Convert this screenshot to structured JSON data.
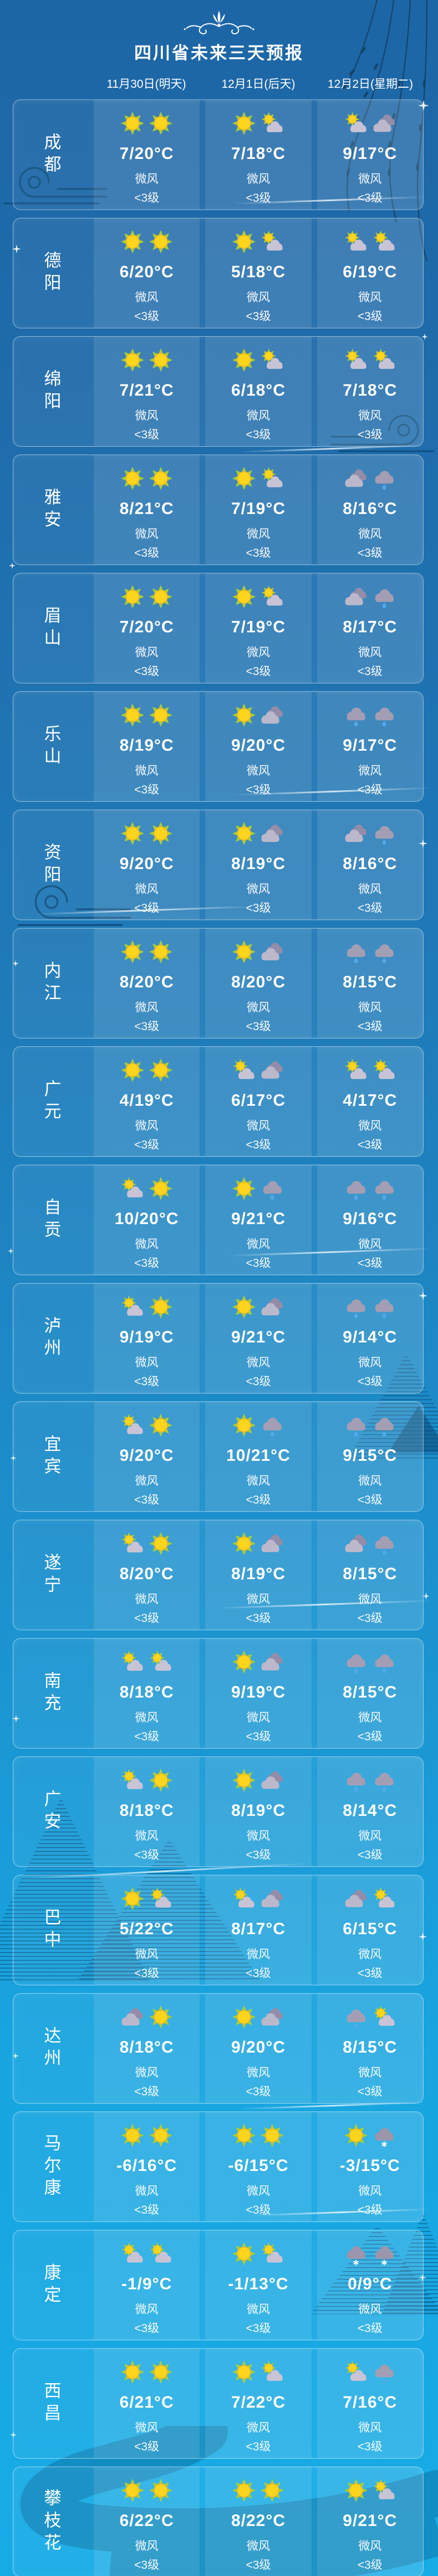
{
  "header": {
    "title": "四川省未来三天预报",
    "dates": [
      "11月30日(明天)",
      "12月1日(后天)",
      "12月2日(星期二)"
    ]
  },
  "wind": {
    "direction": "微风",
    "level": "<3级"
  },
  "icon_legend": {
    "sun": "晴 sunny",
    "sun-cloud": "多云 partly cloudy (sun behind cloud)",
    "cloud": "阴 cloudy (double grey cloud)",
    "rain": "小雨 light rain (cloud with raindrop)",
    "snow": "小雪 light snow (cloud with snowflake)"
  },
  "colors": {
    "background_top": "#1d66a6",
    "background_bottom": "#17abe6",
    "text": "#ffffff",
    "sun_core": "#ffd41d",
    "sun_rays": "#a9ce38",
    "cloud_light": "#c8c4d6",
    "cloud_grey": "#9b96ab",
    "rain_drop": "#52aaeb"
  },
  "rows": [
    {
      "city": "成都",
      "days": [
        {
          "icons": [
            "sun",
            "sun"
          ],
          "temp": "7/20°C"
        },
        {
          "icons": [
            "sun",
            "sun-cloud"
          ],
          "temp": "7/18°C"
        },
        {
          "icons": [
            "sun-cloud",
            "cloud"
          ],
          "temp": "9/17°C"
        }
      ]
    },
    {
      "city": "德阳",
      "days": [
        {
          "icons": [
            "sun",
            "sun"
          ],
          "temp": "6/20°C"
        },
        {
          "icons": [
            "sun",
            "sun-cloud"
          ],
          "temp": "5/18°C"
        },
        {
          "icons": [
            "sun-cloud",
            "sun-cloud"
          ],
          "temp": "6/19°C"
        }
      ]
    },
    {
      "city": "绵阳",
      "days": [
        {
          "icons": [
            "sun",
            "sun"
          ],
          "temp": "7/21°C"
        },
        {
          "icons": [
            "sun",
            "sun-cloud"
          ],
          "temp": "6/18°C"
        },
        {
          "icons": [
            "sun-cloud",
            "sun-cloud"
          ],
          "temp": "7/18°C"
        }
      ]
    },
    {
      "city": "雅安",
      "days": [
        {
          "icons": [
            "sun",
            "sun"
          ],
          "temp": "8/21°C"
        },
        {
          "icons": [
            "sun",
            "sun-cloud"
          ],
          "temp": "7/19°C"
        },
        {
          "icons": [
            "cloud",
            "rain"
          ],
          "temp": "8/16°C"
        }
      ]
    },
    {
      "city": "眉山",
      "days": [
        {
          "icons": [
            "sun",
            "sun"
          ],
          "temp": "7/20°C"
        },
        {
          "icons": [
            "sun",
            "sun-cloud"
          ],
          "temp": "7/19°C"
        },
        {
          "icons": [
            "cloud",
            "rain"
          ],
          "temp": "8/17°C"
        }
      ]
    },
    {
      "city": "乐山",
      "days": [
        {
          "icons": [
            "sun",
            "sun"
          ],
          "temp": "8/19°C"
        },
        {
          "icons": [
            "sun",
            "cloud"
          ],
          "temp": "9/20°C"
        },
        {
          "icons": [
            "rain",
            "rain"
          ],
          "temp": "9/17°C"
        }
      ]
    },
    {
      "city": "资阳",
      "days": [
        {
          "icons": [
            "sun",
            "sun"
          ],
          "temp": "9/20°C"
        },
        {
          "icons": [
            "sun",
            "cloud"
          ],
          "temp": "8/19°C"
        },
        {
          "icons": [
            "cloud",
            "rain"
          ],
          "temp": "8/16°C"
        }
      ]
    },
    {
      "city": "内江",
      "days": [
        {
          "icons": [
            "sun",
            "sun"
          ],
          "temp": "8/20°C"
        },
        {
          "icons": [
            "sun",
            "cloud"
          ],
          "temp": "8/20°C"
        },
        {
          "icons": [
            "rain",
            "rain"
          ],
          "temp": "8/15°C"
        }
      ]
    },
    {
      "city": "广元",
      "days": [
        {
          "icons": [
            "sun",
            "sun"
          ],
          "temp": "4/19°C"
        },
        {
          "icons": [
            "sun-cloud",
            "cloud"
          ],
          "temp": "6/17°C"
        },
        {
          "icons": [
            "sun-cloud",
            "sun-cloud"
          ],
          "temp": "4/17°C"
        }
      ]
    },
    {
      "city": "自贡",
      "days": [
        {
          "icons": [
            "sun-cloud",
            "sun"
          ],
          "temp": "10/20°C"
        },
        {
          "icons": [
            "sun",
            "rain"
          ],
          "temp": "9/21°C"
        },
        {
          "icons": [
            "rain",
            "rain"
          ],
          "temp": "9/16°C"
        }
      ]
    },
    {
      "city": "泸州",
      "days": [
        {
          "icons": [
            "sun-cloud",
            "sun"
          ],
          "temp": "9/19°C"
        },
        {
          "icons": [
            "sun",
            "cloud"
          ],
          "temp": "9/21°C"
        },
        {
          "icons": [
            "rain",
            "rain"
          ],
          "temp": "9/14°C"
        }
      ]
    },
    {
      "city": "宜宾",
      "days": [
        {
          "icons": [
            "sun-cloud",
            "sun"
          ],
          "temp": "9/20°C"
        },
        {
          "icons": [
            "sun",
            "rain"
          ],
          "temp": "10/21°C"
        },
        {
          "icons": [
            "rain",
            "rain"
          ],
          "temp": "9/15°C"
        }
      ]
    },
    {
      "city": "遂宁",
      "days": [
        {
          "icons": [
            "sun-cloud",
            "sun"
          ],
          "temp": "8/20°C"
        },
        {
          "icons": [
            "sun",
            "cloud"
          ],
          "temp": "8/19°C"
        },
        {
          "icons": [
            "cloud",
            "rain"
          ],
          "temp": "8/15°C"
        }
      ]
    },
    {
      "city": "南充",
      "days": [
        {
          "icons": [
            "sun-cloud",
            "sun-cloud"
          ],
          "temp": "8/18°C"
        },
        {
          "icons": [
            "sun",
            "cloud"
          ],
          "temp": "9/19°C"
        },
        {
          "icons": [
            "rain",
            "rain"
          ],
          "temp": "8/15°C"
        }
      ]
    },
    {
      "city": "广安",
      "days": [
        {
          "icons": [
            "sun-cloud",
            "sun"
          ],
          "temp": "8/18°C"
        },
        {
          "icons": [
            "sun",
            "cloud"
          ],
          "temp": "8/19°C"
        },
        {
          "icons": [
            "rain",
            "rain"
          ],
          "temp": "8/14°C"
        }
      ]
    },
    {
      "city": "巴中",
      "days": [
        {
          "icons": [
            "sun",
            "sun-cloud"
          ],
          "temp": "5/22°C"
        },
        {
          "icons": [
            "sun-cloud",
            "cloud"
          ],
          "temp": "8/17°C"
        },
        {
          "icons": [
            "cloud",
            "sun-cloud"
          ],
          "temp": "6/15°C"
        }
      ]
    },
    {
      "city": "达州",
      "days": [
        {
          "icons": [
            "cloud",
            "sun"
          ],
          "temp": "8/18°C"
        },
        {
          "icons": [
            "sun",
            "cloud"
          ],
          "temp": "9/20°C"
        },
        {
          "icons": [
            "rain",
            "sun-cloud"
          ],
          "temp": "8/15°C"
        }
      ]
    },
    {
      "city": "马尔康",
      "days": [
        {
          "icons": [
            "sun",
            "sun"
          ],
          "temp": "-6/16°C"
        },
        {
          "icons": [
            "sun",
            "sun"
          ],
          "temp": "-6/15°C"
        },
        {
          "icons": [
            "sun",
            "snow"
          ],
          "temp": "-3/15°C"
        }
      ]
    },
    {
      "city": "康定",
      "days": [
        {
          "icons": [
            "sun-cloud",
            "sun-cloud"
          ],
          "temp": "-1/9°C"
        },
        {
          "icons": [
            "sun",
            "sun-cloud"
          ],
          "temp": "-1/13°C"
        },
        {
          "icons": [
            "snow",
            "snow"
          ],
          "temp": "0/9°C"
        }
      ]
    },
    {
      "city": "西昌",
      "days": [
        {
          "icons": [
            "sun",
            "sun"
          ],
          "temp": "6/21°C"
        },
        {
          "icons": [
            "sun",
            "sun-cloud"
          ],
          "temp": "7/22°C"
        },
        {
          "icons": [
            "sun-cloud",
            "rain"
          ],
          "temp": "7/16°C"
        }
      ]
    },
    {
      "city": "攀枝花",
      "days": [
        {
          "icons": [
            "sun",
            "sun"
          ],
          "temp": "6/22°C"
        },
        {
          "icons": [
            "sun",
            "sun"
          ],
          "temp": "8/22°C"
        },
        {
          "icons": [
            "sun",
            "sun-cloud"
          ],
          "temp": "9/21°C"
        }
      ]
    }
  ]
}
